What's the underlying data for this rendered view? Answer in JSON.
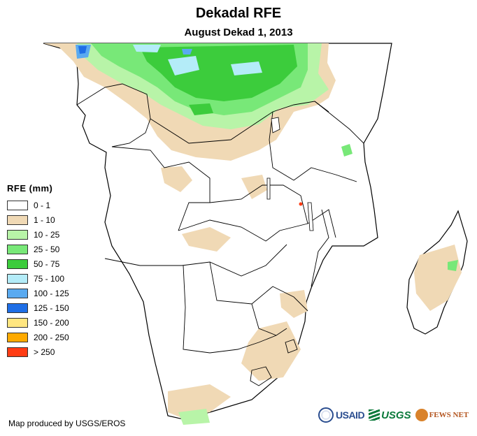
{
  "title": "Dekadal RFE",
  "subtitle": "August Dekad 1, 2013",
  "legend": {
    "title": "RFE (mm)",
    "items": [
      {
        "label": "0 - 1",
        "color": "#ffffff"
      },
      {
        "label": "1 - 10",
        "color": "#f0d9b5"
      },
      {
        "label": "10 - 25",
        "color": "#b8f4a8"
      },
      {
        "label": "25 - 50",
        "color": "#78e878"
      },
      {
        "label": "50 - 75",
        "color": "#3ccc3c"
      },
      {
        "label": "75 - 100",
        "color": "#b4ecf8"
      },
      {
        "label": "100 - 125",
        "color": "#5aaaf0"
      },
      {
        "label": "125 - 150",
        "color": "#1e6ee6"
      },
      {
        "label": "150 - 200",
        "color": "#ffe680"
      },
      {
        "label": "200 - 250",
        "color": "#ffaa00"
      },
      {
        "label": "> 250",
        "color": "#ff3c14"
      }
    ]
  },
  "credit": "Map produced by USGS/EROS",
  "logos": {
    "usaid": "USAID",
    "usgs": "USGS",
    "fews": "FEWS NET"
  }
}
